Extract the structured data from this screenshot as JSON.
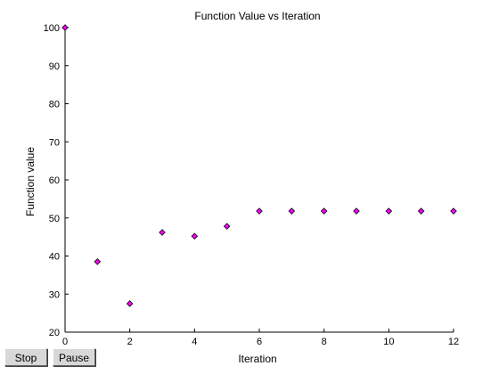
{
  "window": {
    "buttons": {
      "stop_label": "Stop",
      "pause_label": "Pause"
    }
  },
  "chart_data": {
    "type": "scatter",
    "title": "Function Value vs Iteration",
    "xlabel": "Iteration",
    "ylabel": "Function value",
    "xlim": [
      0,
      12
    ],
    "ylim": [
      20,
      100
    ],
    "xticks": [
      0,
      2,
      4,
      6,
      8,
      10,
      12
    ],
    "yticks": [
      20,
      30,
      40,
      50,
      60,
      70,
      80,
      90,
      100
    ],
    "grid": false,
    "marker": "diamond",
    "marker_color": "#ff00ff",
    "marker_edge": "#000000",
    "x": [
      0,
      1,
      2,
      3,
      4,
      5,
      6,
      7,
      8,
      9,
      10,
      11,
      12
    ],
    "y": [
      100,
      38.5,
      27.5,
      46.2,
      45.2,
      47.8,
      51.8,
      51.8,
      51.8,
      51.8,
      51.8,
      51.8,
      51.8
    ]
  }
}
